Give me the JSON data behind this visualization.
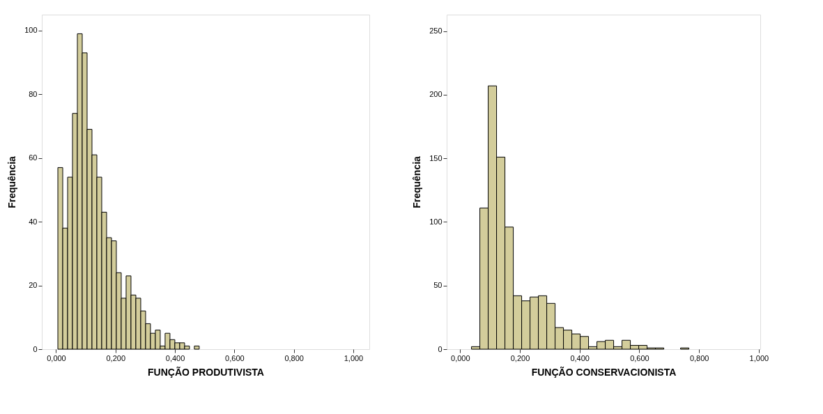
{
  "chart_data": [
    {
      "type": "histogram",
      "xlabel": "FUNÇÃO PRODUTIVISTA",
      "ylabel": "Frequência",
      "color": "#d3cd9b",
      "bins": [
        0.006,
        0.0224,
        0.0388,
        0.0552,
        0.0716,
        0.088,
        0.1044,
        0.1208,
        0.1372,
        0.1536,
        0.17,
        0.1864,
        0.2028,
        0.2192,
        0.2356,
        0.252,
        0.2684,
        0.2848,
        0.3012,
        0.3176,
        0.334,
        0.3504,
        0.3668,
        0.3832,
        0.3996,
        0.416,
        0.4324,
        0.4488,
        0.4652,
        0.4816
      ],
      "values": [
        57,
        38,
        54,
        74,
        99,
        93,
        69,
        61,
        54,
        43,
        35,
        34,
        24,
        16,
        23,
        17,
        16,
        12,
        8,
        5,
        6,
        1,
        5,
        3,
        2,
        2,
        1,
        0,
        1
      ],
      "xlim": [
        -0.048,
        1.054
      ],
      "ylim": [
        0,
        105
      ],
      "xticks": [
        {
          "value": 0,
          "label": "0,000"
        },
        {
          "value": 0.2,
          "label": "0,200"
        },
        {
          "value": 0.4,
          "label": "0,400"
        },
        {
          "value": 0.6,
          "label": "0,600"
        },
        {
          "value": 0.8,
          "label": "0,800"
        },
        {
          "value": 1,
          "label": "1,000"
        }
      ],
      "yticks": [
        0,
        20,
        40,
        60,
        80,
        100
      ]
    },
    {
      "type": "histogram",
      "xlabel": "FUNÇÃO CONSERVACIONISTA",
      "ylabel": "Frequência",
      "color": "#d3cd9b",
      "bins": [
        0.038,
        0.066,
        0.094,
        0.122,
        0.15,
        0.178,
        0.206,
        0.234,
        0.262,
        0.29,
        0.318,
        0.346,
        0.374,
        0.402,
        0.43,
        0.458,
        0.486,
        0.514,
        0.542,
        0.57,
        0.598,
        0.626,
        0.654,
        0.682,
        0.71,
        0.738,
        0.766
      ],
      "values": [
        2,
        111,
        207,
        151,
        96,
        42,
        38,
        41,
        42,
        36,
        17,
        15,
        12,
        10,
        2,
        6,
        7,
        2,
        7,
        3,
        3,
        1,
        1,
        0,
        0,
        1
      ],
      "xlim": [
        -0.045,
        1.005
      ],
      "ylim": [
        0,
        263
      ],
      "xticks": [
        {
          "value": 0,
          "label": "0,000"
        },
        {
          "value": 0.2,
          "label": "0,200"
        },
        {
          "value": 0.4,
          "label": "0,400"
        },
        {
          "value": 0.6,
          "label": "0,600"
        },
        {
          "value": 0.8,
          "label": "0,800"
        },
        {
          "value": 1,
          "label": "1,000"
        }
      ],
      "yticks": [
        0,
        50,
        100,
        150,
        200,
        250
      ]
    }
  ]
}
